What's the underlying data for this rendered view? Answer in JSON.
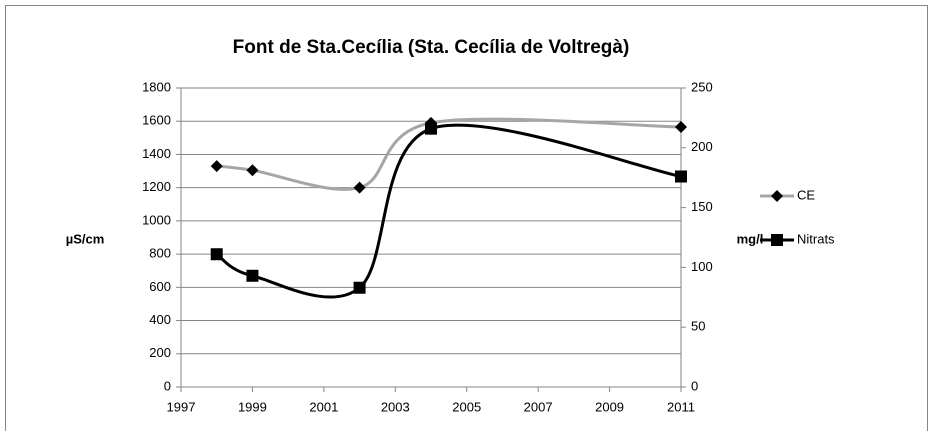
{
  "chart_data": {
    "type": "line",
    "title": "Font de Sta.Cecília (Sta. Cecília de Voltregà)",
    "ylabel": "µS/cm",
    "y2label": "mg/l",
    "x": [
      1998,
      1999,
      2002,
      2004,
      2011
    ],
    "xlim": [
      1997,
      2011
    ],
    "xticks": [
      1997,
      1999,
      2001,
      2003,
      2005,
      2007,
      2009,
      2011
    ],
    "ylim": [
      0,
      1800
    ],
    "yticks": [
      0,
      200,
      400,
      600,
      800,
      1000,
      1200,
      1400,
      1600,
      1800
    ],
    "y2lim": [
      0,
      250
    ],
    "y2ticks": [
      0,
      50,
      100,
      150,
      200,
      250
    ],
    "grid": true,
    "smooth": true,
    "legend": "right",
    "series": [
      {
        "name": "CE",
        "color": "#a6a6a6",
        "marker": "diamond",
        "marker_color": "#000000",
        "values": [
          1330,
          1305,
          1200,
          1590,
          1565
        ]
      },
      {
        "name": "Nitrats",
        "color": "#000000",
        "marker": "square",
        "marker_color": "#000000",
        "axis": "y2",
        "values": [
          111,
          93,
          83,
          216,
          176
        ]
      }
    ]
  }
}
